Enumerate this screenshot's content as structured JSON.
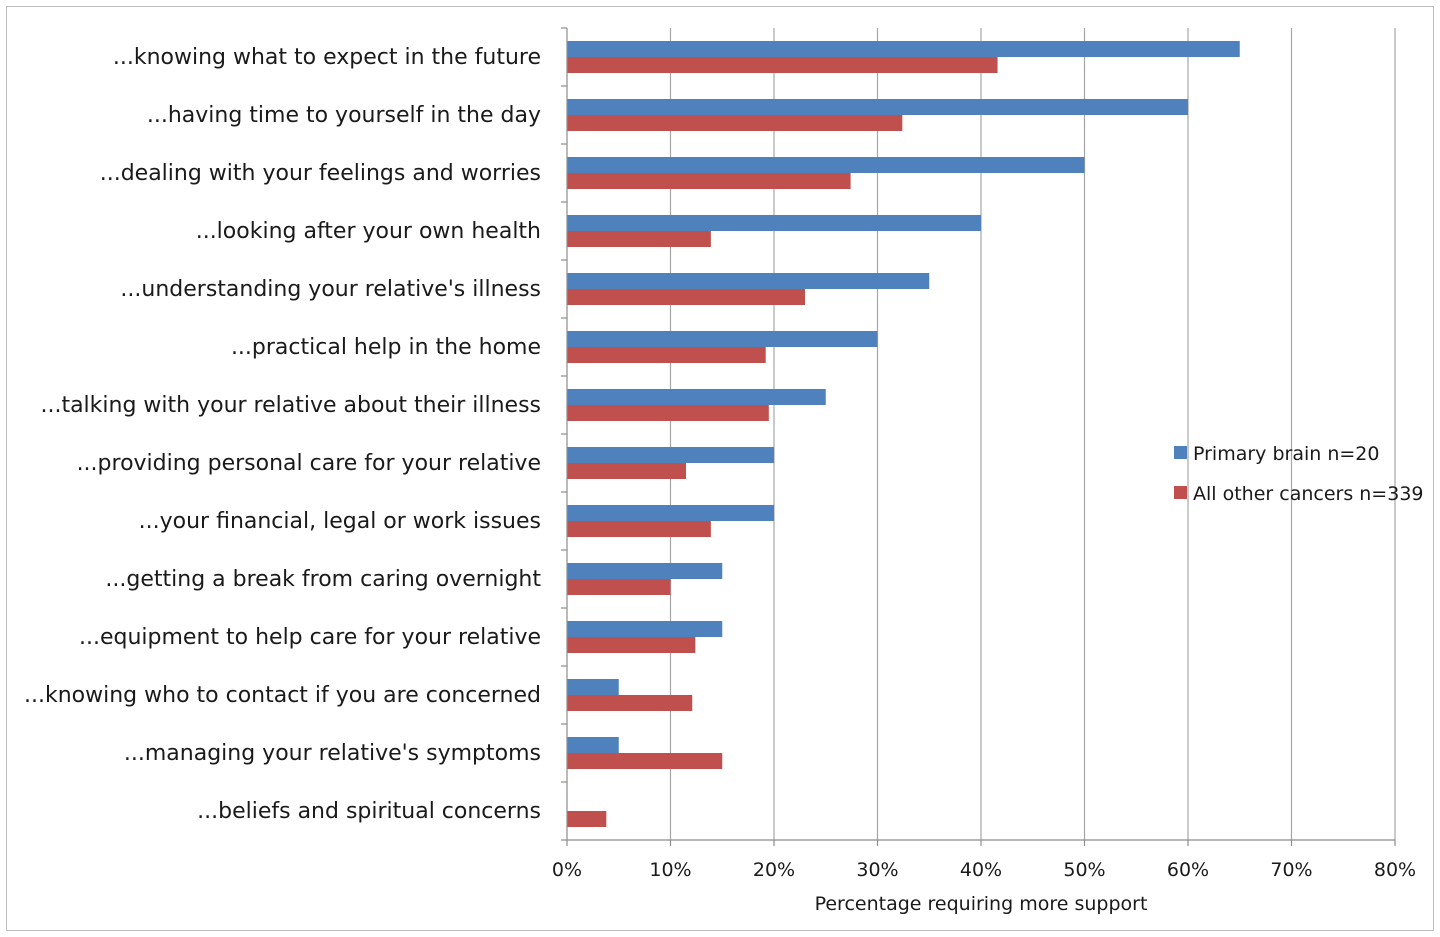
{
  "chart_data": {
    "type": "bar",
    "orientation": "horizontal",
    "categories": [
      "...knowing what to expect in the future",
      "...having time to yourself in the day",
      "...dealing with your feelings and worries",
      "...looking after your own health",
      "...understanding your relative's illness",
      "...practical help in the home",
      "...talking with your relative about their illness",
      "...providing personal care for your relative",
      "...your financial, legal or work issues",
      "...getting a break from caring overnight",
      "...equipment to help care for your relative",
      "...knowing who to contact if you are concerned",
      "...managing your relative's symptoms",
      "...beliefs and spiritual concerns"
    ],
    "series": [
      {
        "name": "Primary brain n=20",
        "color": "#4f81bd",
        "values": [
          65,
          60,
          50,
          40,
          35,
          30,
          25,
          20,
          20,
          15,
          15,
          5,
          5,
          0
        ]
      },
      {
        "name": "All other cancers n=339",
        "color": "#c0504d",
        "values": [
          41.6,
          32.4,
          27.4,
          13.9,
          23.0,
          19.2,
          19.5,
          11.5,
          13.9,
          10.0,
          12.4,
          12.1,
          15.0,
          3.8
        ]
      }
    ],
    "xlabel": "Percentage requiring more support",
    "ylabel": "",
    "xlim": [
      0,
      80
    ],
    "xticks": [
      0,
      10,
      20,
      30,
      40,
      50,
      60,
      70,
      80
    ],
    "xtick_labels": [
      "0%",
      "10%",
      "20%",
      "30%",
      "40%",
      "50%",
      "60%",
      "70%",
      "80%"
    ],
    "grid": true,
    "legend_position": "right"
  }
}
